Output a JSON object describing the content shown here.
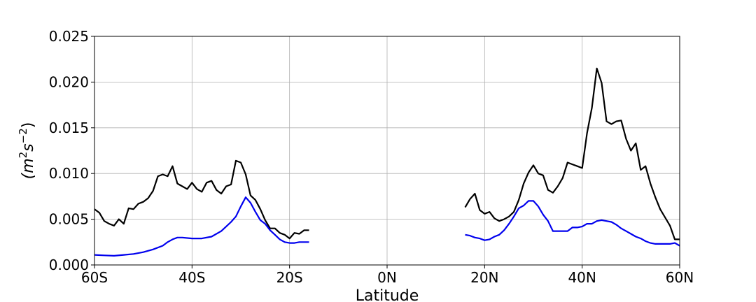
{
  "chart_data": {
    "type": "line",
    "title": "",
    "xlabel": "Latitude",
    "ylabel": "(m²s⁻²)",
    "ylabel_parts": {
      "open": "(m",
      "sup1": "2",
      "mid": "s",
      "sup2": "−2",
      "close": ")"
    },
    "xlim": [
      -60,
      60
    ],
    "ylim": [
      0,
      0.025
    ],
    "grid": true,
    "x_ticks": [
      {
        "value": -60,
        "label": "60S"
      },
      {
        "value": -40,
        "label": "40S"
      },
      {
        "value": -20,
        "label": "20S"
      },
      {
        "value": 0,
        "label": "0N"
      },
      {
        "value": 20,
        "label": "20N"
      },
      {
        "value": 40,
        "label": "40N"
      },
      {
        "value": 60,
        "label": "60N"
      }
    ],
    "y_ticks": [
      {
        "value": 0,
        "label": "0.000"
      },
      {
        "value": 0.005,
        "label": "0.005"
      },
      {
        "value": 0.01,
        "label": "0.010"
      },
      {
        "value": 0.015,
        "label": "0.015"
      },
      {
        "value": 0.02,
        "label": "0.020"
      },
      {
        "value": 0.025,
        "label": "0.025"
      }
    ],
    "series": [
      {
        "color": "#000000",
        "segments": [
          [
            [
              -60,
              0.0061
            ],
            [
              -59,
              0.0057
            ],
            [
              -58,
              0.0048
            ],
            [
              -57,
              0.0045
            ],
            [
              -56,
              0.0043
            ],
            [
              -55,
              0.005
            ],
            [
              -54,
              0.0045
            ],
            [
              -53,
              0.0062
            ],
            [
              -52,
              0.0061
            ],
            [
              -51,
              0.0067
            ],
            [
              -50,
              0.0069
            ],
            [
              -49,
              0.0073
            ],
            [
              -48,
              0.0081
            ],
            [
              -47,
              0.0097
            ],
            [
              -46,
              0.0099
            ],
            [
              -45,
              0.0097
            ],
            [
              -44,
              0.0108
            ],
            [
              -43,
              0.0089
            ],
            [
              -42,
              0.0086
            ],
            [
              -41,
              0.0083
            ],
            [
              -40,
              0.009
            ],
            [
              -39,
              0.0083
            ],
            [
              -38,
              0.008
            ],
            [
              -37,
              0.009
            ],
            [
              -36,
              0.0092
            ],
            [
              -35,
              0.0082
            ],
            [
              -34,
              0.0078
            ],
            [
              -33,
              0.0086
            ],
            [
              -32,
              0.0088
            ],
            [
              -31,
              0.0114
            ],
            [
              -30,
              0.0112
            ],
            [
              -29,
              0.0099
            ],
            [
              -28,
              0.0076
            ],
            [
              -27,
              0.0071
            ],
            [
              -26,
              0.0061
            ],
            [
              -25,
              0.0049
            ],
            [
              -24,
              0.004
            ],
            [
              -23,
              0.004
            ],
            [
              -22,
              0.0035
            ],
            [
              -21,
              0.0033
            ],
            [
              -20,
              0.0029
            ],
            [
              -19,
              0.0035
            ],
            [
              -18,
              0.0034
            ],
            [
              -17,
              0.0038
            ],
            [
              -16,
              0.0038
            ]
          ],
          [
            [
              16,
              0.0063
            ],
            [
              17,
              0.0072
            ],
            [
              18,
              0.0078
            ],
            [
              19,
              0.006
            ],
            [
              20,
              0.0056
            ],
            [
              21,
              0.0058
            ],
            [
              22,
              0.0051
            ],
            [
              23,
              0.0048
            ],
            [
              24,
              0.005
            ],
            [
              25,
              0.0053
            ],
            [
              26,
              0.0058
            ],
            [
              27,
              0.0071
            ],
            [
              28,
              0.0089
            ],
            [
              29,
              0.0101
            ],
            [
              30,
              0.0109
            ],
            [
              31,
              0.01
            ],
            [
              32,
              0.0098
            ],
            [
              33,
              0.0082
            ],
            [
              34,
              0.0079
            ],
            [
              35,
              0.0086
            ],
            [
              36,
              0.0095
            ],
            [
              37,
              0.0112
            ],
            [
              38,
              0.011
            ],
            [
              39,
              0.0108
            ],
            [
              40,
              0.0106
            ],
            [
              41,
              0.0144
            ],
            [
              42,
              0.0172
            ],
            [
              43,
              0.0215
            ],
            [
              44,
              0.0199
            ],
            [
              45,
              0.0157
            ],
            [
              46,
              0.0154
            ],
            [
              47,
              0.0157
            ],
            [
              48,
              0.0158
            ],
            [
              49,
              0.0138
            ],
            [
              50,
              0.0125
            ],
            [
              51,
              0.0133
            ],
            [
              52,
              0.0104
            ],
            [
              53,
              0.0108
            ],
            [
              54,
              0.0089
            ],
            [
              55,
              0.0074
            ],
            [
              56,
              0.0061
            ],
            [
              57,
              0.0052
            ],
            [
              58,
              0.0043
            ],
            [
              59,
              0.0028
            ],
            [
              60,
              0.0028
            ]
          ]
        ]
      },
      {
        "color": "#0000ee",
        "segments": [
          [
            [
              -60,
              0.0011
            ],
            [
              -58,
              0.00105
            ],
            [
              -56,
              0.001
            ],
            [
              -54,
              0.0011
            ],
            [
              -52,
              0.0012
            ],
            [
              -50,
              0.0014
            ],
            [
              -48,
              0.0017
            ],
            [
              -46,
              0.0021
            ],
            [
              -45,
              0.0025
            ],
            [
              -44,
              0.0028
            ],
            [
              -43,
              0.003
            ],
            [
              -42,
              0.003
            ],
            [
              -40,
              0.0029
            ],
            [
              -38,
              0.0029
            ],
            [
              -36,
              0.0031
            ],
            [
              -34,
              0.0037
            ],
            [
              -33,
              0.0042
            ],
            [
              -32,
              0.0047
            ],
            [
              -31,
              0.0053
            ],
            [
              -30,
              0.0064
            ],
            [
              -29,
              0.0074
            ],
            [
              -28,
              0.0068
            ],
            [
              -27,
              0.0058
            ],
            [
              -26,
              0.0049
            ],
            [
              -25,
              0.0045
            ],
            [
              -24,
              0.0038
            ],
            [
              -23,
              0.0033
            ],
            [
              -22,
              0.0028
            ],
            [
              -21,
              0.0025
            ],
            [
              -20,
              0.0024
            ],
            [
              -19,
              0.0024
            ],
            [
              -18,
              0.0025
            ],
            [
              -16,
              0.0025
            ]
          ],
          [
            [
              16,
              0.0033
            ],
            [
              17,
              0.0032
            ],
            [
              18,
              0.003
            ],
            [
              19,
              0.0029
            ],
            [
              20,
              0.0027
            ],
            [
              21,
              0.0028
            ],
            [
              22,
              0.0031
            ],
            [
              23,
              0.0033
            ],
            [
              24,
              0.0038
            ],
            [
              25,
              0.0045
            ],
            [
              26,
              0.0053
            ],
            [
              27,
              0.0062
            ],
            [
              28,
              0.0065
            ],
            [
              29,
              0.007
            ],
            [
              30,
              0.007
            ],
            [
              31,
              0.0064
            ],
            [
              32,
              0.0055
            ],
            [
              33,
              0.0048
            ],
            [
              34,
              0.0037
            ],
            [
              35,
              0.0037
            ],
            [
              36,
              0.0037
            ],
            [
              37,
              0.0037
            ],
            [
              38,
              0.0041
            ],
            [
              39,
              0.0041
            ],
            [
              40,
              0.0042
            ],
            [
              41,
              0.0045
            ],
            [
              42,
              0.0045
            ],
            [
              43,
              0.0048
            ],
            [
              44,
              0.0049
            ],
            [
              45,
              0.0048
            ],
            [
              46,
              0.0047
            ],
            [
              47,
              0.0044
            ],
            [
              48,
              0.004
            ],
            [
              49,
              0.0037
            ],
            [
              50,
              0.0034
            ],
            [
              51,
              0.0031
            ],
            [
              52,
              0.0029
            ],
            [
              53,
              0.0026
            ],
            [
              54,
              0.0024
            ],
            [
              55,
              0.0023
            ],
            [
              56,
              0.0023
            ],
            [
              57,
              0.0023
            ],
            [
              58,
              0.0023
            ],
            [
              59,
              0.0024
            ],
            [
              60,
              0.0021
            ]
          ]
        ]
      }
    ]
  }
}
